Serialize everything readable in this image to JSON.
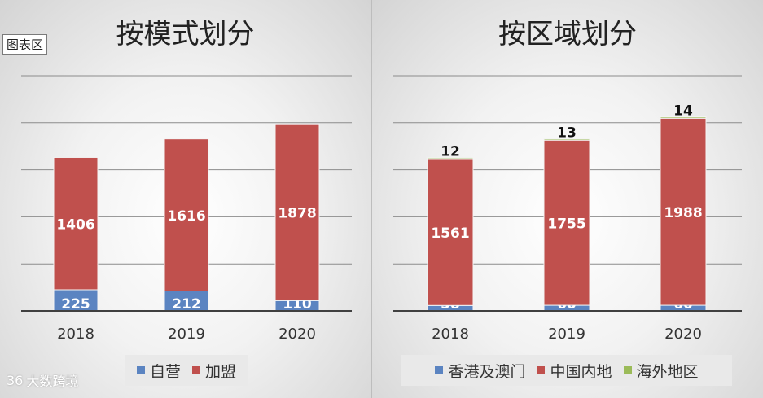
{
  "colors": {
    "blue": "#5b84c1",
    "red": "#c0504d",
    "green": "#9bbb59"
  },
  "area_tag": "图表区",
  "watermark": {
    "logo": "36",
    "text": "大数跨境"
  },
  "chart_data": [
    {
      "type": "bar",
      "stacked": true,
      "title": "按模式划分",
      "categories": [
        "2018",
        "2019",
        "2020"
      ],
      "ylim": [
        0,
        2500
      ],
      "grid": true,
      "legend_position": "bottom",
      "series": [
        {
          "name": "自营",
          "color": "#5b84c1",
          "values": [
            225,
            212,
            110
          ]
        },
        {
          "name": "加盟",
          "color": "#c0504d",
          "values": [
            1406,
            1616,
            1878
          ]
        }
      ]
    },
    {
      "type": "bar",
      "stacked": true,
      "title": "按区域划分",
      "categories": [
        "2018",
        "2019",
        "2020"
      ],
      "ylim": [
        0,
        2500
      ],
      "grid": true,
      "legend_position": "bottom",
      "series": [
        {
          "name": "香港及澳门",
          "color": "#5b84c1",
          "values": [
            58,
            60,
            60
          ]
        },
        {
          "name": "中国内地",
          "color": "#c0504d",
          "values": [
            1561,
            1755,
            1988
          ]
        },
        {
          "name": "海外地区",
          "color": "#9bbb59",
          "values": [
            12,
            13,
            14
          ]
        }
      ]
    }
  ]
}
